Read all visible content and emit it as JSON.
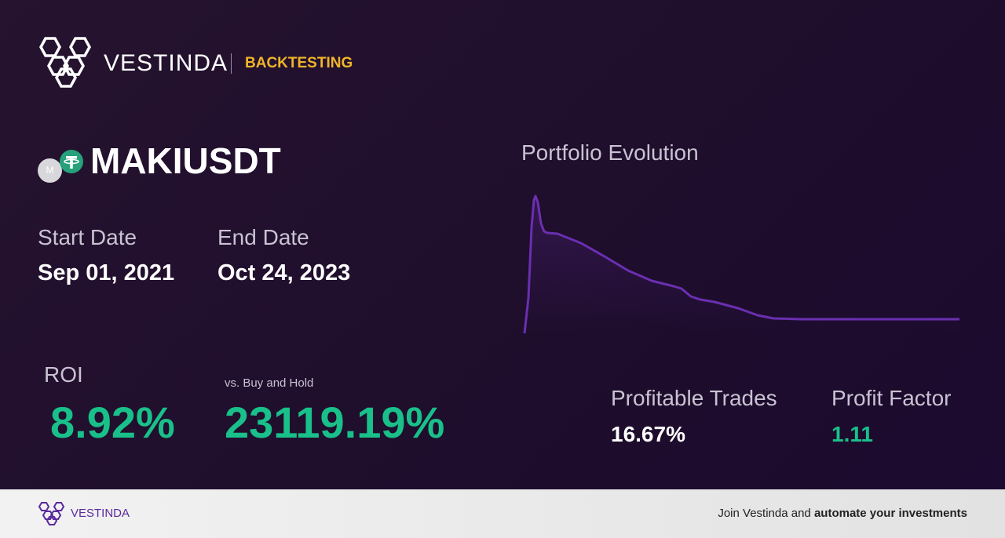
{
  "header": {
    "brand": "VESTINDA",
    "tag": "BACKTESTING"
  },
  "asset": {
    "icon_letter": "M",
    "symbol": "MAKIUSDT"
  },
  "dates": {
    "start_label": "Start Date",
    "start": "Sep 01, 2021",
    "end_label": "End Date",
    "end": "Oct 24, 2023"
  },
  "stats": {
    "roi_label": "ROI",
    "roi": "8.92%",
    "bh_label": "vs. Buy and Hold",
    "bh": "23119.19%",
    "trades_label": "Profitable Trades",
    "trades": "16.67%",
    "pf_label": "Profit Factor",
    "pf": "1.11"
  },
  "chart_data": {
    "type": "line",
    "title": "Portfolio Evolution",
    "color": "#6a2fb0",
    "x": [
      0,
      5,
      9,
      12,
      14,
      17,
      21,
      25,
      29,
      42,
      72,
      102,
      132,
      162,
      190,
      200,
      212,
      224,
      242,
      272,
      297,
      317,
      352,
      432,
      554
    ],
    "values": [
      5,
      50,
      140,
      175,
      180,
      172,
      145,
      135,
      133,
      132,
      120,
      103,
      85,
      72,
      65,
      62,
      52,
      48,
      45,
      37,
      28,
      24,
      23,
      23,
      23
    ]
  },
  "footer": {
    "brand": "VESTINDA",
    "cta_plain": "Join Vestinda and",
    "cta_bold": "automate your investments"
  }
}
